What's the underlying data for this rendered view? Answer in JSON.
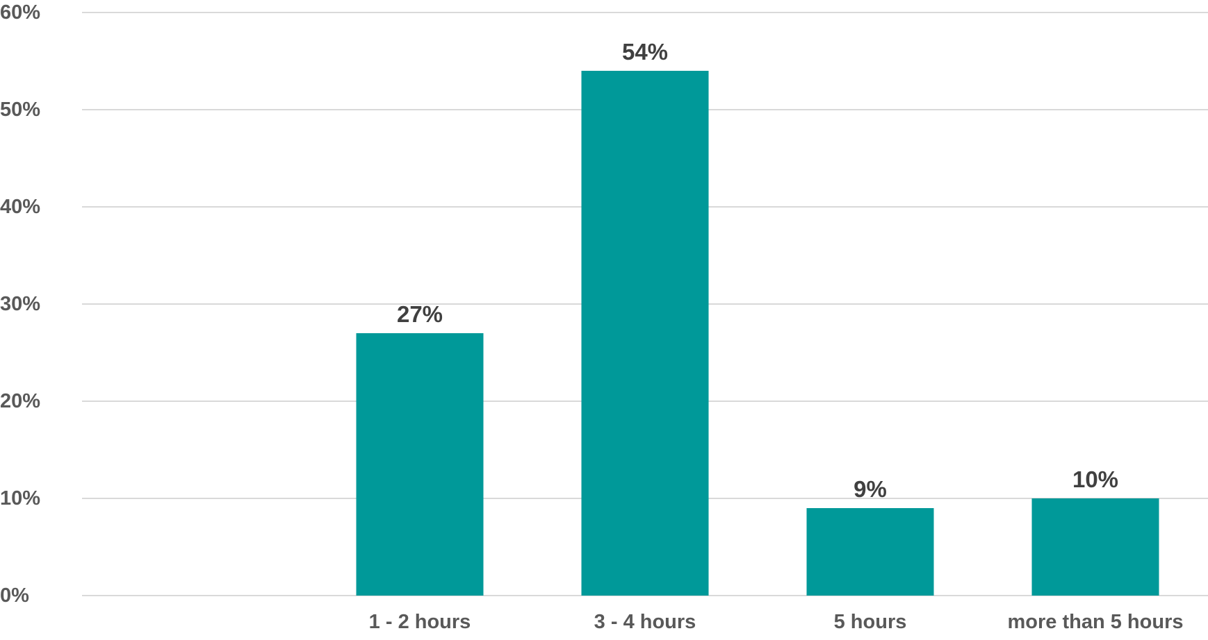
{
  "chart_data": {
    "type": "bar",
    "title": "",
    "xlabel": "",
    "ylabel": "",
    "categories": [
      "",
      "1 - 2 hours",
      "3 - 4 hours",
      "5 hours",
      "more than 5 hours"
    ],
    "values": [
      null,
      27,
      54,
      9,
      10
    ],
    "data_labels": [
      "",
      "27%",
      "54%",
      "9%",
      "10%"
    ],
    "y_ticks": [
      "0%",
      "10%",
      "20%",
      "30%",
      "40%",
      "50%",
      "60%"
    ],
    "y_tick_values": [
      0,
      10,
      20,
      30,
      40,
      50,
      60
    ],
    "ylim": [
      0,
      60
    ],
    "grid": true,
    "legend": "none",
    "colors": {
      "bar": "#009999",
      "grid": "#d9d9d9",
      "tick_text": "#595959",
      "label_text": "#404040"
    }
  }
}
